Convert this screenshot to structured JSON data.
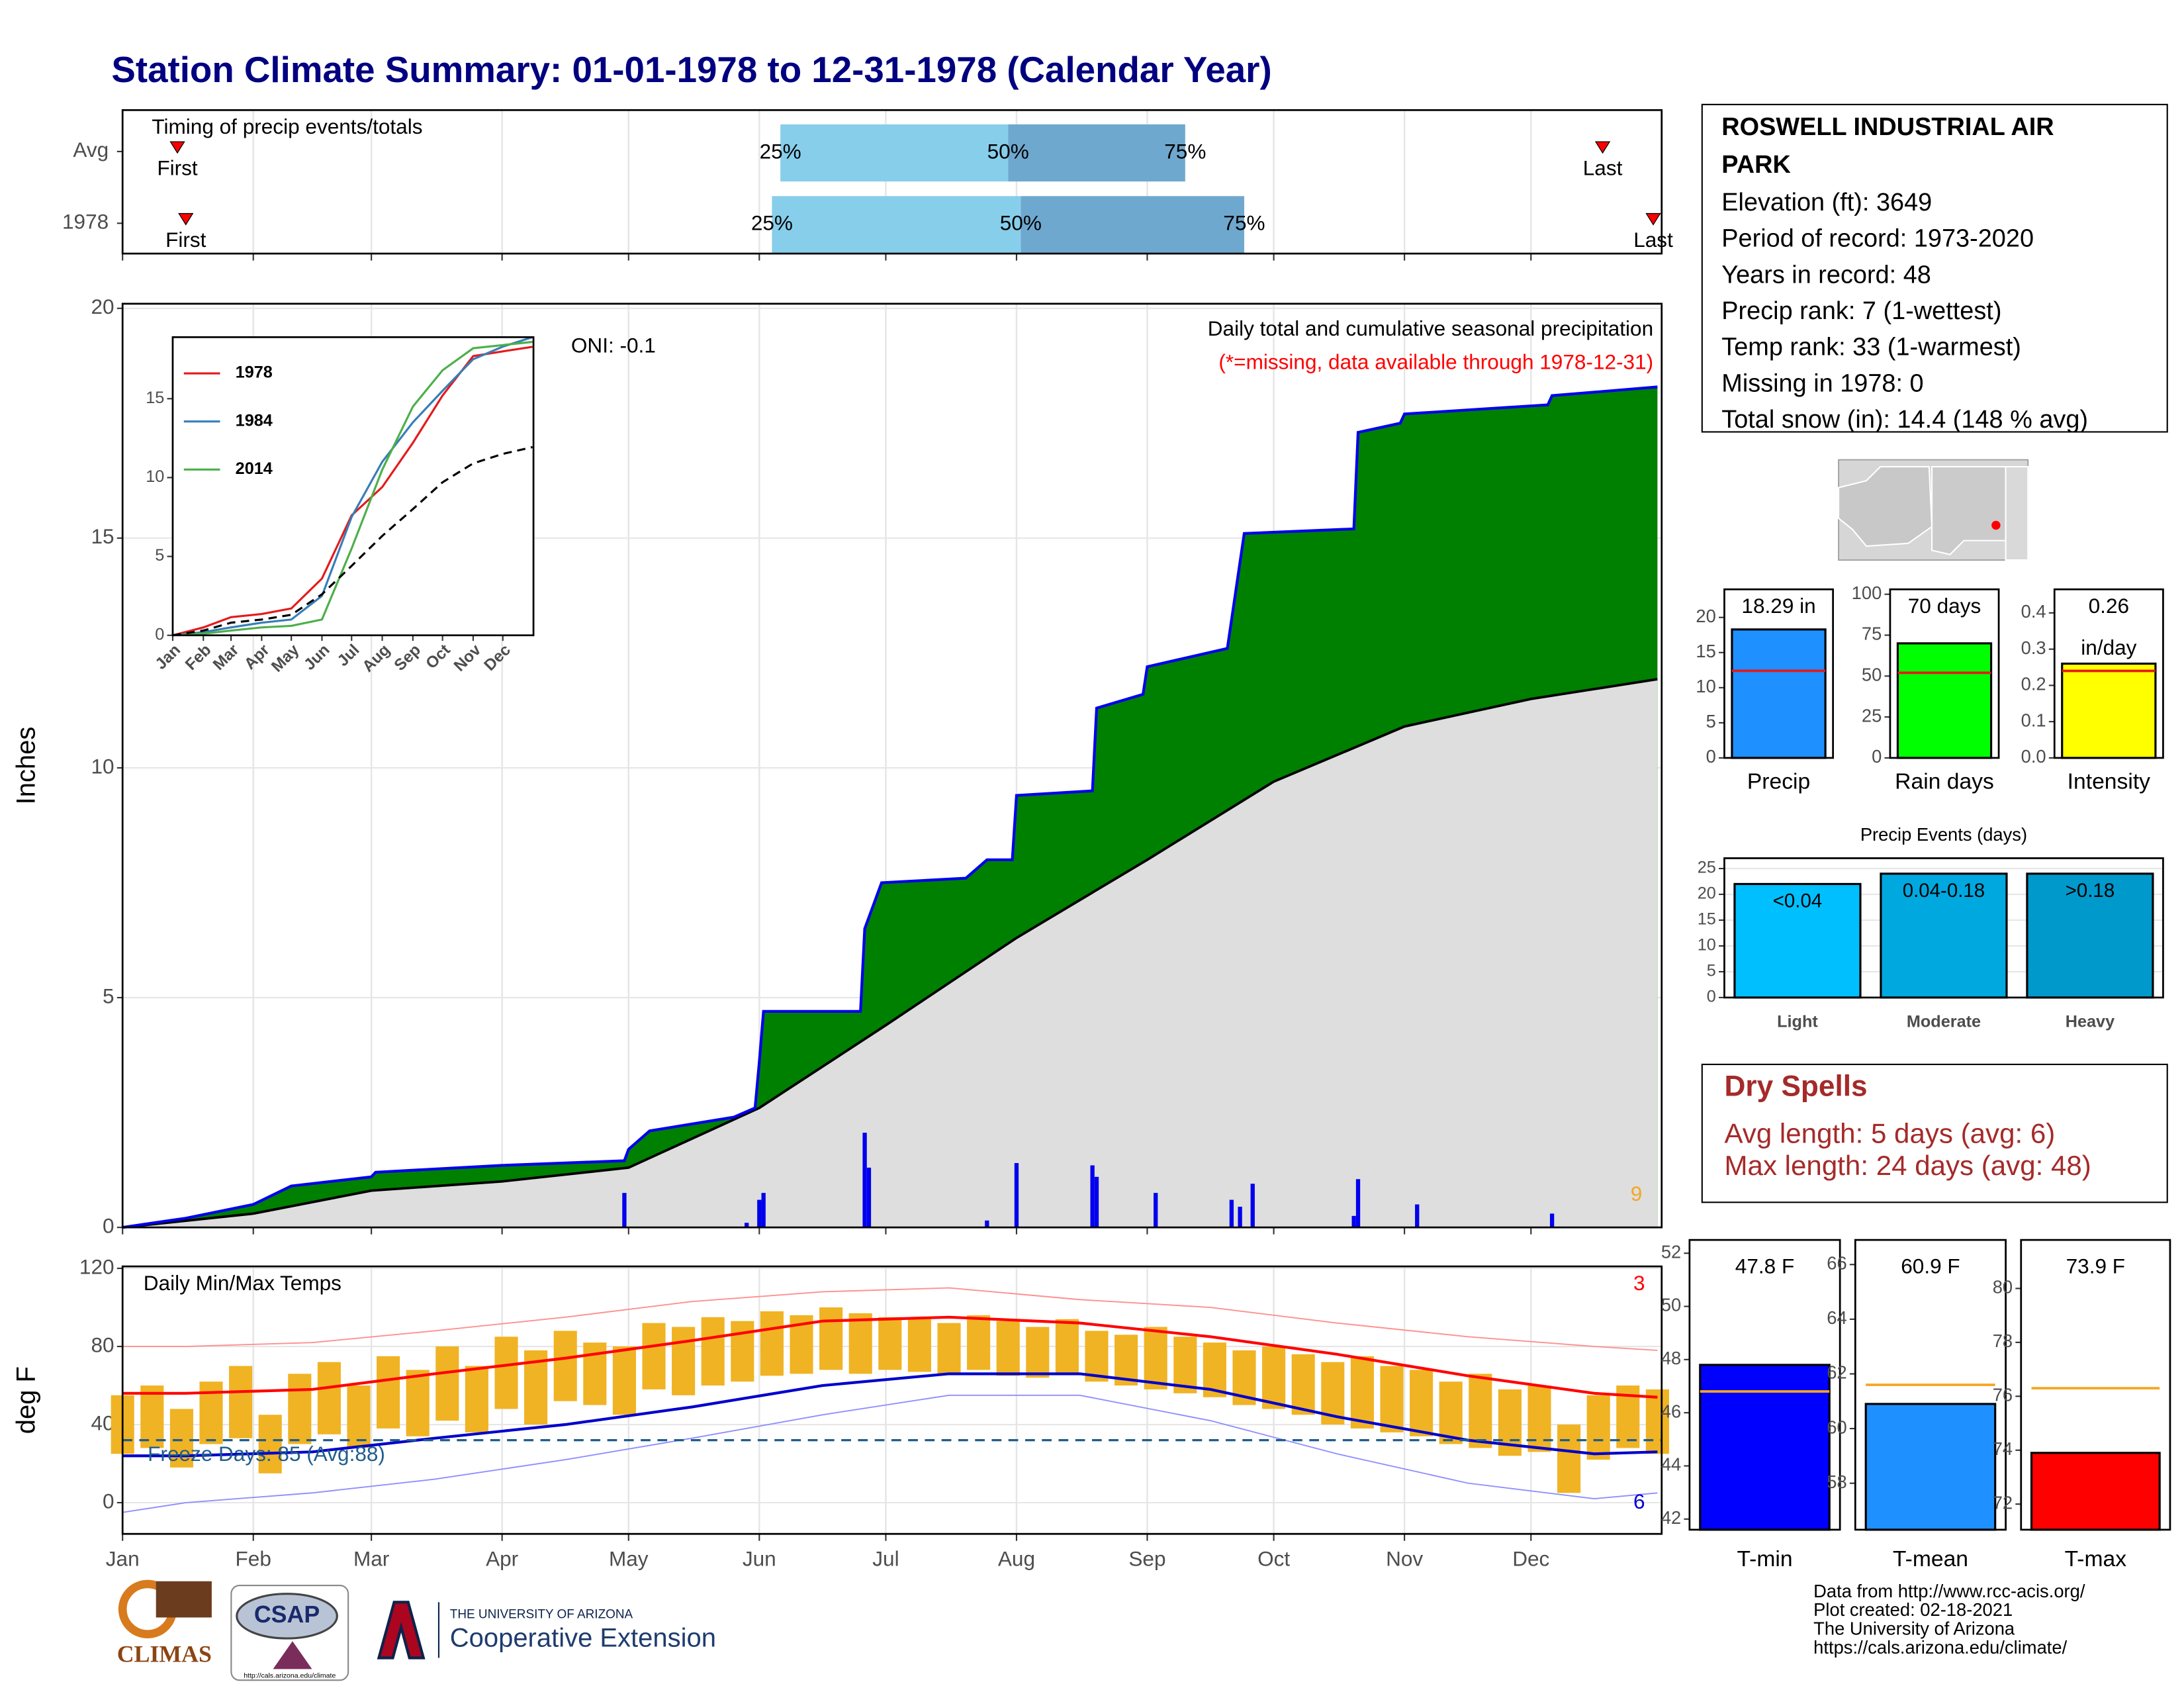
{
  "title": "Station Climate Summary: 01-01-1978 to 12-31-1978 (Calendar Year)",
  "chart_data": [
    {
      "type": "timing",
      "title": "Timing of precip events/totals",
      "categories": [
        "Avg",
        "1978"
      ],
      "xlim": [
        0,
        365
      ],
      "xticks": [
        0,
        31,
        59,
        90,
        120,
        151,
        181,
        212,
        243,
        273,
        304,
        334
      ],
      "first": [
        13,
        15
      ],
      "q25": [
        156,
        154
      ],
      "q50": [
        210,
        213
      ],
      "q75": [
        252,
        266
      ],
      "last": [
        351,
        363
      ],
      "labels": {
        "first": "First",
        "q25": "25%",
        "q50": "50%",
        "q75": "75%",
        "last": "Last"
      },
      "colors": [
        "#87ceeb",
        "#6fa8cf"
      ],
      "marker_color": "#ff0000",
      "grid": true
    },
    {
      "type": "area",
      "title": "Daily total and cumulative seasonal precipitation",
      "subtitle": "(*=missing, data available through 1978-12-31)",
      "oni": "ONI: -0.1",
      "record_count": 9,
      "y_label": "Inches",
      "xlim": [
        0,
        365
      ],
      "xticks": [
        0,
        31,
        59,
        90,
        120,
        151,
        181,
        212,
        243,
        273,
        304,
        334
      ],
      "ylim": [
        0,
        20.1
      ],
      "yticks": [
        0,
        5,
        10,
        15,
        20
      ],
      "grid": true,
      "series": [
        {
          "color": "#0000ee",
          "fill": "#008000",
          "x": [
            0,
            15,
            31,
            40,
            59,
            60,
            90,
            119,
            120,
            125,
            145,
            150,
            151,
            152,
            175,
            176,
            180,
            200,
            205,
            211,
            212,
            230,
            231,
            242,
            243,
            262,
            266,
            292,
            293,
            303,
            304,
            338,
            339,
            364
          ],
          "values": [
            0,
            0.2,
            0.5,
            0.9,
            1.1,
            1.2,
            1.35,
            1.45,
            1.7,
            2.1,
            2.4,
            2.6,
            3.6,
            4.7,
            4.7,
            6.5,
            7.5,
            7.6,
            8.0,
            8.0,
            9.4,
            9.5,
            11.3,
            11.6,
            12.2,
            12.6,
            15.1,
            15.2,
            17.3,
            17.5,
            17.7,
            17.9,
            18.1,
            18.29
          ]
        },
        {
          "color": "#000000",
          "fill": "#dedede",
          "deficit_fill": "#8b5a1b",
          "x": [
            0,
            31,
            59,
            90,
            120,
            151,
            181,
            212,
            243,
            273,
            304,
            334,
            364
          ],
          "values": [
            0,
            0.3,
            0.8,
            1.0,
            1.3,
            2.6,
            4.4,
            6.3,
            8.0,
            9.7,
            10.9,
            11.5,
            11.93
          ]
        }
      ],
      "daily": {
        "color": "#0000ee",
        "x": [
          119,
          148,
          151,
          152,
          176,
          177,
          205,
          212,
          230,
          231,
          245,
          263,
          265,
          268,
          292,
          293,
          307,
          339
        ],
        "values": [
          0.75,
          0.1,
          0.6,
          0.75,
          2.06,
          1.3,
          0.15,
          1.4,
          1.35,
          1.1,
          0.75,
          0.6,
          0.45,
          0.95,
          0.25,
          1.05,
          0.5,
          0.3
        ]
      },
      "colors": {
        "record": "#f5a623",
        "subtitle": "#ff0000"
      }
    },
    {
      "type": "line",
      "xlim": [
        0,
        365
      ],
      "xticks": [
        {
          "value": 0,
          "label": "Jan"
        },
        {
          "value": 31,
          "label": "Feb"
        },
        {
          "value": 59,
          "label": "Mar"
        },
        {
          "value": 90,
          "label": "Apr"
        },
        {
          "value": 120,
          "label": "May"
        },
        {
          "value": 151,
          "label": "Jun"
        },
        {
          "value": 181,
          "label": "Jul"
        },
        {
          "value": 212,
          "label": "Aug"
        },
        {
          "value": 243,
          "label": "Sep"
        },
        {
          "value": 273,
          "label": "Oct"
        },
        {
          "value": 304,
          "label": "Nov"
        },
        {
          "value": 334,
          "label": "Dec"
        }
      ],
      "ylim": [
        0,
        18.9
      ],
      "yticks": [
        0,
        5,
        10,
        15
      ],
      "series": [
        {
          "name": "1978",
          "color": "#e41a1c",
          "x": [
            0,
            31,
            59,
            90,
            120,
            151,
            181,
            212,
            243,
            273,
            304,
            334,
            364
          ],
          "values": [
            0,
            0.5,
            1.15,
            1.35,
            1.7,
            3.6,
            7.6,
            9.4,
            12.2,
            15.2,
            17.7,
            18.0,
            18.29
          ]
        },
        {
          "name": "1984",
          "color": "#377eb8",
          "x": [
            0,
            31,
            59,
            90,
            120,
            151,
            181,
            212,
            243,
            273,
            304,
            334,
            364
          ],
          "values": [
            0,
            0.2,
            0.5,
            0.8,
            1.0,
            2.5,
            7.5,
            11.0,
            13.5,
            15.5,
            17.5,
            18.3,
            18.9
          ]
        },
        {
          "name": "2014",
          "color": "#4daf4a",
          "x": [
            0,
            31,
            59,
            90,
            120,
            151,
            181,
            212,
            243,
            273,
            304,
            334,
            364
          ],
          "values": [
            0,
            0.1,
            0.3,
            0.5,
            0.6,
            1.0,
            5.5,
            10.5,
            14.5,
            16.8,
            18.2,
            18.4,
            18.6
          ]
        },
        {
          "color": "#000000",
          "dash": true,
          "x": [
            0,
            31,
            59,
            90,
            120,
            151,
            181,
            212,
            243,
            273,
            304,
            334,
            364
          ],
          "values": [
            0,
            0.3,
            0.8,
            1.0,
            1.3,
            2.6,
            4.4,
            6.3,
            8.0,
            9.7,
            10.9,
            11.5,
            11.93
          ]
        }
      ]
    },
    {
      "type": "range",
      "title": "Daily Min/Max Temps",
      "y_label": "deg F",
      "freeze_label": "Freeze Days: 85 (Avg:88)",
      "freeze_line": 32,
      "record_high_count": 3,
      "record_low_count": 6,
      "xlim": [
        0,
        365
      ],
      "xticks": [
        {
          "value": 0,
          "label": "Jan"
        },
        {
          "value": 31,
          "label": "Feb"
        },
        {
          "value": 59,
          "label": "Mar"
        },
        {
          "value": 90,
          "label": "Apr"
        },
        {
          "value": 120,
          "label": "May"
        },
        {
          "value": 151,
          "label": "Jun"
        },
        {
          "value": 181,
          "label": "Jul"
        },
        {
          "value": 212,
          "label": "Aug"
        },
        {
          "value": 243,
          "label": "Sep"
        },
        {
          "value": 273,
          "label": "Oct"
        },
        {
          "value": 304,
          "label": "Nov"
        },
        {
          "value": 334,
          "label": "Dec"
        }
      ],
      "ylim": [
        -16,
        121
      ],
      "yticks": [
        0,
        40,
        80,
        120
      ],
      "grid": true,
      "normal_x": [
        0,
        15,
        45,
        74,
        105,
        135,
        166,
        196,
        227,
        258,
        288,
        319,
        349,
        364
      ],
      "avg_max": [
        56,
        56,
        58,
        66,
        74,
        83,
        93,
        95,
        92,
        85,
        76,
        65,
        56,
        54
      ],
      "avg_min": [
        24,
        24,
        26,
        33,
        40,
        49,
        60,
        66,
        66,
        58,
        44,
        32,
        25,
        26
      ],
      "record_max": [
        80,
        80,
        82,
        88,
        95,
        103,
        108,
        110,
        104,
        100,
        92,
        85,
        80,
        78
      ],
      "record_min": [
        -5,
        0,
        5,
        12,
        22,
        33,
        45,
        55,
        55,
        42,
        25,
        10,
        2,
        5
      ],
      "daily_x": [
        0,
        7,
        14,
        21,
        28,
        35,
        42,
        49,
        56,
        63,
        70,
        77,
        84,
        91,
        98,
        105,
        112,
        119,
        126,
        133,
        140,
        147,
        154,
        161,
        168,
        175,
        182,
        189,
        196,
        203,
        210,
        217,
        224,
        231,
        238,
        245,
        252,
        259,
        266,
        273,
        280,
        287,
        294,
        301,
        308,
        315,
        322,
        329,
        336,
        343,
        350,
        357,
        364
      ],
      "daily_max": [
        55,
        60,
        48,
        62,
        70,
        45,
        66,
        72,
        60,
        75,
        68,
        80,
        70,
        85,
        78,
        88,
        82,
        80,
        92,
        90,
        95,
        93,
        98,
        96,
        100,
        97,
        95,
        94,
        92,
        96,
        93,
        90,
        94,
        88,
        86,
        90,
        85,
        82,
        78,
        80,
        76,
        72,
        75,
        70,
        68,
        62,
        66,
        58,
        60,
        40,
        55,
        60,
        58
      ],
      "daily_min": [
        25,
        28,
        18,
        30,
        33,
        15,
        30,
        35,
        28,
        38,
        34,
        42,
        36,
        48,
        40,
        52,
        50,
        45,
        58,
        55,
        60,
        62,
        65,
        66,
        68,
        66,
        68,
        67,
        66,
        68,
        65,
        64,
        66,
        62,
        60,
        58,
        56,
        54,
        50,
        48,
        45,
        40,
        38,
        36,
        34,
        30,
        28,
        24,
        26,
        5,
        22,
        28,
        25
      ],
      "colors": {
        "daily": "#f0b323",
        "avg_max": "#ff0000",
        "avg_min": "#0000cc",
        "record_max": "#ff9090",
        "record_min": "#8f8fff",
        "freeze": "#1f5d8c"
      }
    },
    {
      "type": "bar",
      "categories": [
        "Precip"
      ],
      "values": [
        18.29
      ],
      "value_labels": [
        "18.29 in"
      ],
      "average": [
        12.4
      ],
      "color": "#1e90ff",
      "average_color": "#e41a1c",
      "ylim": [
        0,
        24
      ],
      "yticks": [
        0,
        5,
        10,
        15,
        20
      ]
    },
    {
      "type": "bar",
      "categories": [
        "Rain days"
      ],
      "values": [
        70
      ],
      "value_labels": [
        "70 days"
      ],
      "average": [
        52
      ],
      "color": "#00ff00",
      "average_color": "#e41a1c",
      "ylim": [
        0,
        103
      ],
      "yticks": [
        0,
        25,
        50,
        75,
        100
      ]
    },
    {
      "type": "bar",
      "categories": [
        "Intensity"
      ],
      "values": [
        0.26
      ],
      "value_labels": [
        "0.26"
      ],
      "unit": "in/day",
      "average": [
        0.24
      ],
      "color": "#ffff00",
      "average_color": "#e41a1c",
      "ylim": [
        0,
        0.465
      ],
      "yticks": [
        {
          "value": 0,
          "label": "0.0"
        },
        0.1,
        0.2,
        0.3,
        0.4
      ]
    },
    {
      "type": "bar",
      "title": "Precip Events (days)",
      "categories": [
        "Light",
        "Moderate",
        "Heavy"
      ],
      "bin_labels": [
        "<0.04",
        "0.04-0.18",
        ">0.18"
      ],
      "values": [
        22,
        24,
        24
      ],
      "colors": [
        "#00bfff",
        "#00a8e0",
        "#0099cc"
      ],
      "ylim": [
        0,
        27
      ],
      "yticks": [
        0,
        5,
        10,
        15,
        20,
        25
      ],
      "grid": true
    },
    {
      "type": "bar",
      "categories": [
        "T-min"
      ],
      "values": [
        47.8
      ],
      "value_labels": [
        "47.8 F"
      ],
      "average": [
        46.8
      ],
      "color": "#0000ff",
      "average_color": "#f5a623",
      "ylim": [
        41.6,
        52.5
      ],
      "yticks": [
        42,
        44,
        46,
        48,
        50,
        52
      ]
    },
    {
      "type": "bar",
      "categories": [
        "T-mean"
      ],
      "values": [
        60.9
      ],
      "value_labels": [
        "60.9 F"
      ],
      "average": [
        61.6
      ],
      "color": "#1e90ff",
      "average_color": "#f5a623",
      "ylim": [
        56.3,
        66.9
      ],
      "yticks": [
        58,
        60,
        62,
        64,
        66
      ]
    },
    {
      "type": "bar",
      "categories": [
        "T-max"
      ],
      "values": [
        73.9
      ],
      "value_labels": [
        "73.9 F"
      ],
      "average": [
        76.3
      ],
      "color": "#ff0000",
      "average_color": "#f5a623",
      "ylim": [
        71.05,
        81.8
      ],
      "yticks": [
        72,
        74,
        76,
        78,
        80
      ]
    }
  ],
  "station": {
    "name": "ROSWELL INDUSTRIAL AIR PARK",
    "lines": [
      "Elevation (ft): 3649",
      "Period of record: 1973-2020",
      "Years in record: 48",
      "Precip rank: 7 (1-wettest)",
      "Temp rank: 33 (1-warmest)",
      "Missing in 1978: 0",
      "Total snow (in): 14.4 (148 % avg)"
    ]
  },
  "dry_spells": {
    "title": "Dry Spells",
    "lines": [
      "Avg length: 5 days (avg: 6)",
      "Max length: 24 days (avg: 48)"
    ]
  },
  "footer": [
    "Data from http://www.rcc-acis.org/",
    "Plot created: 02-18-2021",
    "The University of Arizona",
    "https://cals.arizona.edu/climate/"
  ],
  "logos": {
    "climas": "CLIMAS",
    "csap": "CSAP",
    "csap_url": "http://cals.arizona.edu/climate",
    "university": "THE UNIVERSITY OF ARIZONA",
    "unit": "Cooperative Extension"
  }
}
